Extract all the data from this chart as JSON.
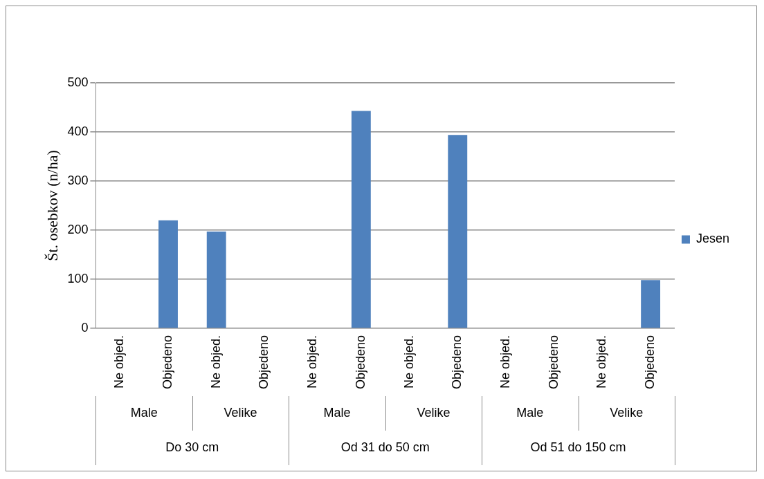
{
  "chart_data": {
    "type": "bar",
    "ylabel": "Št. osebkov (n/ha)",
    "categories": [
      "Ne objed.",
      "Objedeno",
      "Ne objed.",
      "Objedeno",
      "Ne objed.",
      "Objedeno",
      "Ne objed.",
      "Objedeno",
      "Ne objed.",
      "Objedeno",
      "Ne objed.",
      "Objedeno"
    ],
    "series": [
      {
        "name": "Jesen",
        "color": "#4f81bd",
        "values": [
          0,
          220,
          197,
          0,
          0,
          443,
          0,
          394,
          0,
          0,
          0,
          98
        ]
      }
    ],
    "ylim": [
      0,
      500
    ],
    "yticks": [
      0,
      100,
      200,
      300,
      400,
      500
    ],
    "grid": "y",
    "legend": "right",
    "annotations": [
      "Male",
      "Velike",
      "Male",
      "Velike",
      "Male",
      "Velike",
      "Do 30 cm",
      "Od 31 do 50 cm",
      "Od 51 do 150 cm"
    ]
  }
}
